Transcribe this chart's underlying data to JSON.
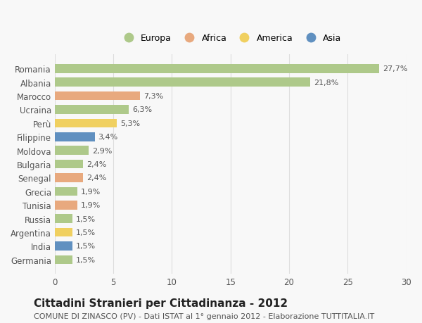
{
  "countries": [
    "Romania",
    "Albania",
    "Marocco",
    "Ucraina",
    "Perù",
    "Filippine",
    "Moldova",
    "Bulgaria",
    "Senegal",
    "Grecia",
    "Tunisia",
    "Russia",
    "Argentina",
    "India",
    "Germania"
  ],
  "values": [
    27.7,
    21.8,
    7.3,
    6.3,
    5.3,
    3.4,
    2.9,
    2.4,
    2.4,
    1.9,
    1.9,
    1.5,
    1.5,
    1.5,
    1.5
  ],
  "labels": [
    "27,7%",
    "21,8%",
    "7,3%",
    "6,3%",
    "5,3%",
    "3,4%",
    "2,9%",
    "2,4%",
    "2,4%",
    "1,9%",
    "1,9%",
    "1,5%",
    "1,5%",
    "1,5%",
    "1,5%"
  ],
  "continents": [
    "Europa",
    "Europa",
    "Africa",
    "Europa",
    "America",
    "Asia",
    "Europa",
    "Europa",
    "Africa",
    "Europa",
    "Africa",
    "Europa",
    "America",
    "Asia",
    "Europa"
  ],
  "continent_colors": {
    "Europa": "#aec98a",
    "Africa": "#e8a97e",
    "America": "#f0d060",
    "Asia": "#6090c0"
  },
  "legend_order": [
    "Europa",
    "Africa",
    "America",
    "Asia"
  ],
  "title": "Cittadini Stranieri per Cittadinanza - 2012",
  "subtitle": "COMUNE DI ZINASCO (PV) - Dati ISTAT al 1° gennaio 2012 - Elaborazione TUTTITALIA.IT",
  "xlim": [
    0,
    30
  ],
  "xticks": [
    0,
    5,
    10,
    15,
    20,
    25,
    30
  ],
  "background_color": "#f8f8f8",
  "grid_color": "#dddddd",
  "bar_height": 0.65,
  "title_fontsize": 11,
  "subtitle_fontsize": 8,
  "label_fontsize": 8,
  "tick_fontsize": 8.5,
  "legend_fontsize": 9
}
